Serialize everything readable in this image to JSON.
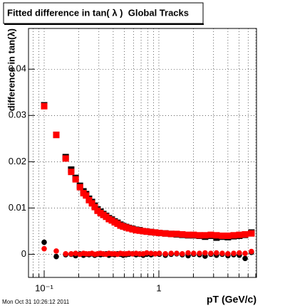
{
  "chart_data": {
    "type": "scatter",
    "title": "Fitted difference in tan( λ )  Global Tracks",
    "x_label": "pT (GeV/c)",
    "y_label": "difference in tan(λ)",
    "timestamp": "Mon Oct 31 10:26:12 2011",
    "x_log": true,
    "grid": true,
    "xlim": [
      0.073,
      7.1
    ],
    "ylim": [
      -0.005,
      0.0488
    ],
    "xticks": [
      {
        "value": 0.08,
        "label": null
      },
      {
        "value": 0.09,
        "label": null
      },
      {
        "value": 0.1,
        "label": "10⁻¹"
      },
      {
        "value": 0.2,
        "label": null
      },
      {
        "value": 0.3,
        "label": null
      },
      {
        "value": 0.4,
        "label": null
      },
      {
        "value": 0.5,
        "label": null
      },
      {
        "value": 0.6,
        "label": null
      },
      {
        "value": 0.7,
        "label": null
      },
      {
        "value": 0.8,
        "label": null
      },
      {
        "value": 0.9,
        "label": null
      },
      1,
      {
        "value": 2,
        "label": null
      },
      {
        "value": 3,
        "label": null
      },
      {
        "value": 4,
        "label": null
      },
      {
        "value": 5,
        "label": null
      },
      {
        "value": 6,
        "label": null
      },
      {
        "value": 7,
        "label": null
      }
    ],
    "yticks": [
      0,
      0.01,
      0.02,
      0.03,
      0.04
    ],
    "x": [
      0.1,
      0.1275,
      0.154,
      0.172,
      0.188,
      0.205,
      0.22,
      0.232,
      0.246,
      0.261,
      0.276,
      0.292,
      0.31,
      0.328,
      0.347,
      0.367,
      0.389,
      0.412,
      0.436,
      0.462,
      0.489,
      0.518,
      0.548,
      0.589,
      0.633,
      0.68,
      0.73,
      0.784,
      0.855,
      0.931,
      1.01,
      1.14,
      1.28,
      1.43,
      1.6,
      1.8,
      2.01,
      2.26,
      2.53,
      2.84,
      3.18,
      3.57,
      4,
      4.49,
      5.03,
      5.65,
      6.41
    ],
    "series": [
      {
        "color": "#000000",
        "marker": "square",
        "values": [
          0.0322,
          0.0258,
          0.021,
          0.0183,
          0.0165,
          0.0148,
          0.0136,
          0.013,
          0.012,
          0.0113,
          0.0105,
          0.0097,
          0.0092,
          0.0087,
          0.0083,
          0.0078,
          0.0075,
          0.0071,
          0.0068,
          0.0064,
          0.0061,
          0.0059,
          0.0057,
          0.0055,
          0.0053,
          0.0052,
          0.005,
          0.0049,
          0.0048,
          0.0047,
          0.0046,
          0.0045,
          0.0044,
          0.0043,
          0.0042,
          0.0041,
          0.0041,
          0.004,
          0.0038,
          0.004,
          0.0036,
          0.0038,
          0.0037,
          0.0039,
          0.004,
          0.0042,
          0.0047
        ]
      },
      {
        "color": "#ff0000",
        "marker": "square",
        "values": [
          0.032,
          0.0258,
          0.0207,
          0.0178,
          0.0162,
          0.0145,
          0.0132,
          0.0127,
          0.0117,
          0.011,
          0.0102,
          0.0094,
          0.0089,
          0.0085,
          0.0081,
          0.0076,
          0.0073,
          0.0069,
          0.0066,
          0.0062,
          0.006,
          0.0058,
          0.0056,
          0.0054,
          0.0052,
          0.0051,
          0.005,
          0.0049,
          0.0048,
          0.0047,
          0.0046,
          0.0045,
          0.0044,
          0.0044,
          0.0043,
          0.0042,
          0.0042,
          0.0041,
          0.0041,
          0.0042,
          0.0041,
          0.004,
          0.004,
          0.0041,
          0.0042,
          0.0043,
          0.0045
        ]
      },
      {
        "color": "#000000",
        "marker": "circle",
        "values": [
          0.0026,
          -0.0005,
          -0.0001,
          0,
          -0.0003,
          0.0001,
          -0.0002,
          0,
          -0.0001,
          0.0001,
          -0.0002,
          0,
          -0.0001,
          0,
          0.0001,
          -0.0002,
          0,
          -0.0001,
          0.0001,
          0,
          -0.0002,
          -0.0001,
          0,
          0.0001,
          -0.0001,
          0,
          -0.0002,
          0,
          -0.0001,
          0.0001,
          0,
          -0.0002,
          0,
          0.0001,
          -0.0001,
          -0.0003,
          0,
          -0.0001,
          -0.0004,
          0,
          -0.0002,
          0,
          -0.0003,
          -0.0001,
          -0.0002,
          -0.0009,
          0.0004
        ]
      },
      {
        "color": "#ff0000",
        "marker": "circle",
        "values": [
          0.0012,
          0.0007,
          0.0001,
          0.0001,
          0.0002,
          0,
          0.0002,
          0.0001,
          0.0001,
          0.0002,
          0,
          0.0001,
          0.0002,
          0.0001,
          0,
          0.0002,
          0.0001,
          0.0001,
          0,
          0.0002,
          0.0001,
          0.0001,
          0.0002,
          0.0001,
          0.0002,
          0.0001,
          0.0001,
          0.0003,
          0.0002,
          0.0001,
          0.0002,
          0.0001,
          0.0002,
          0.0002,
          0.0001,
          0.0003,
          0.0002,
          0.0002,
          0.0003,
          0.0002,
          0.0003,
          0.0002,
          0.0001,
          0.0002,
          0.0003,
          0.0002,
          0.0006
        ]
      }
    ]
  }
}
